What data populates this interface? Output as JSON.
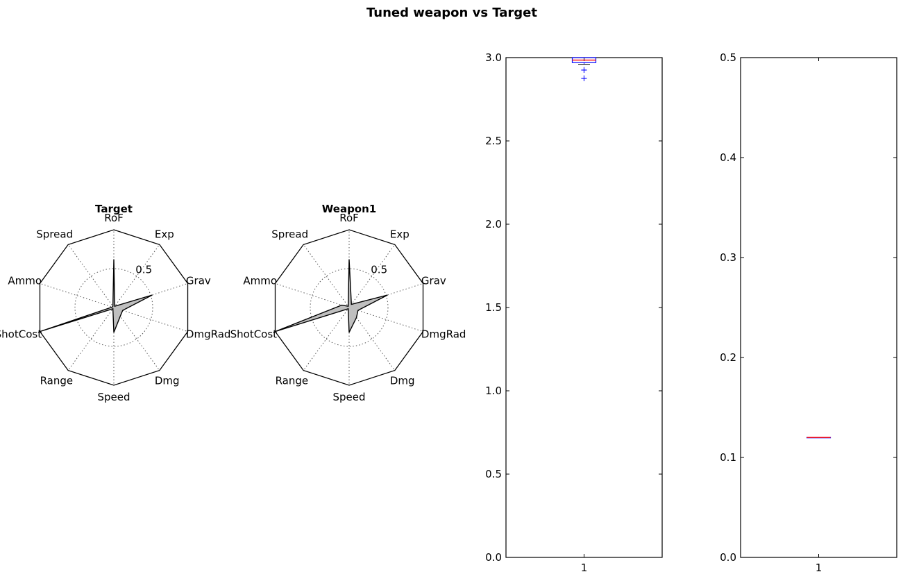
{
  "figure": {
    "title": "Tuned weapon vs Target"
  },
  "chart_data": [
    {
      "type": "radar",
      "title": "Target",
      "axes": [
        "RoF",
        "Exp",
        "Grav",
        "DmgRad",
        "Dmg",
        "Speed",
        "Range",
        "ShotCost",
        "Ammo",
        "Spread"
      ],
      "r_max": 1.0,
      "r_tick_values": [
        0.5
      ],
      "r_tick_labels": [
        "0.5"
      ],
      "values": [
        0.62,
        0.02,
        0.52,
        0.12,
        0.14,
        0.32,
        0.02,
        1.0,
        0.02,
        0.02
      ]
    },
    {
      "type": "radar",
      "title": "Weapon1",
      "axes": [
        "RoF",
        "Exp",
        "Grav",
        "DmgRad",
        "Dmg",
        "Speed",
        "Range",
        "ShotCost",
        "Ammo",
        "Spread"
      ],
      "r_max": 1.0,
      "r_tick_values": [
        0.5
      ],
      "r_tick_labels": [
        "0.5"
      ],
      "values": [
        0.62,
        0.05,
        0.52,
        0.12,
        0.16,
        0.32,
        0.02,
        1.0,
        0.1,
        0.02
      ]
    },
    {
      "type": "box",
      "categories": [
        "1"
      ],
      "ylim": [
        0,
        3.0
      ],
      "yticks": [
        0.0,
        0.5,
        1.0,
        1.5,
        2.0,
        2.5,
        3.0
      ],
      "ytick_labels": [
        "0.0",
        "0.5",
        "1.0",
        "1.5",
        "2.0",
        "2.5",
        "3.0"
      ],
      "box": {
        "q1": 2.97,
        "median": 2.985,
        "q3": 3.0,
        "whisker_low": 2.96,
        "whisker_high": 3.0,
        "outliers": [
          2.93,
          2.88
        ]
      }
    },
    {
      "type": "box",
      "categories": [
        "1"
      ],
      "ylim": [
        0,
        0.5
      ],
      "yticks": [
        0.0,
        0.1,
        0.2,
        0.3,
        0.4,
        0.5
      ],
      "ytick_labels": [
        "0.0",
        "0.1",
        "0.2",
        "0.3",
        "0.4",
        "0.5"
      ],
      "box": {
        "q1": 0.12,
        "median": 0.12,
        "q3": 0.12,
        "whisker_low": 0.12,
        "whisker_high": 0.12,
        "outliers": []
      }
    }
  ],
  "colors": {
    "axis": "#000000",
    "radar_fill": "#bfbfbf",
    "grid": "#555555",
    "box_edge": "#0000ff",
    "median": "#ff0000",
    "outlier": "#0000ff"
  }
}
